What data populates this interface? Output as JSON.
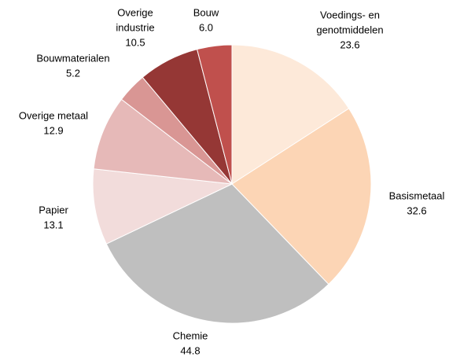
{
  "chart_data": {
    "type": "pie",
    "categories": [
      [
        "Voedings- en",
        "genotmiddelen"
      ],
      [
        "Basismetaal"
      ],
      [
        "Chemie"
      ],
      [
        "Papier"
      ],
      [
        "Overige metaal"
      ],
      [
        "Bouwmaterialen"
      ],
      [
        "Overige",
        "industrie"
      ],
      [
        "Bouw"
      ]
    ],
    "values": [
      23.6,
      32.6,
      44.8,
      13.1,
      12.9,
      5.2,
      10.5,
      6
    ],
    "value_labels": [
      "23.6",
      "32.6",
      "44.8",
      "13.1",
      "12.9",
      "5.2",
      "10.5",
      "6.0"
    ],
    "colors": [
      "#fde9d9",
      "#fcd5b5",
      "#bfbfbf",
      "#f2dcdb",
      "#e6b9b8",
      "#d99694",
      "#953735",
      "#c0504d"
    ]
  }
}
